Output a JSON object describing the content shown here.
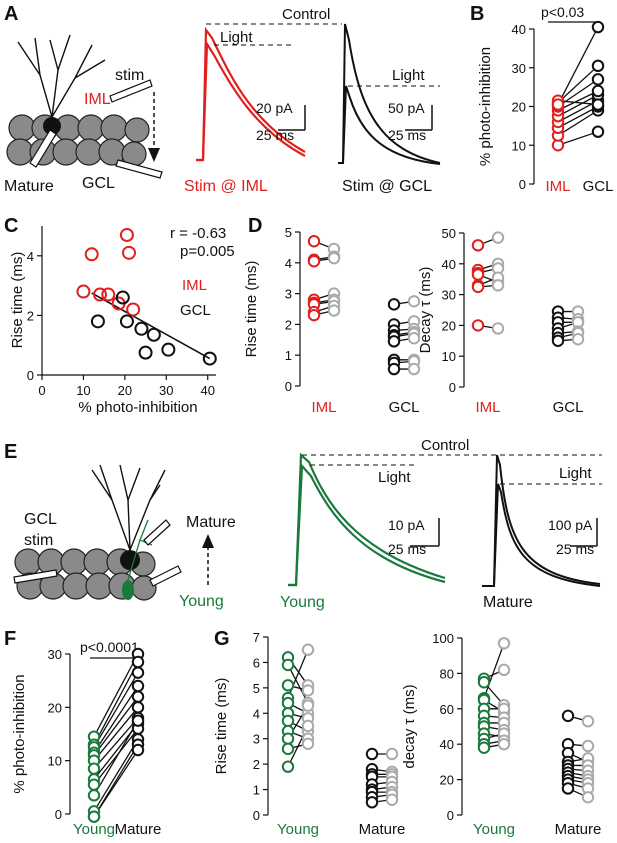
{
  "panels": {
    "A": {
      "letter": "A",
      "labels": {
        "stim": "stim",
        "iml": "IML",
        "mature": "Mature",
        "gcl": "GCL"
      },
      "trace1": {
        "control": "Control",
        "light": "Light",
        "caption": "Stim @ IML",
        "scale_y": "20 pA",
        "scale_x": "25 ms"
      },
      "trace2": {
        "light": "Light",
        "caption": "Stim @ GCL",
        "scale_y": "50 pA",
        "scale_x": "25 ms"
      }
    },
    "B": {
      "letter": "B",
      "sig": "p<0.03"
    },
    "C": {
      "letter": "C",
      "r_text": "r = -0.63",
      "p_text": "p=0.005",
      "legend_iml": "IML",
      "legend_gcl": "GCL"
    },
    "D": {
      "letter": "D"
    },
    "E": {
      "letter": "E",
      "labels": {
        "gcl": "GCL",
        "stim": "stim",
        "mature": "Mature",
        "young": "Young"
      },
      "trace1": {
        "control": "Control",
        "light": "Light",
        "caption": "Young",
        "scale_y": "10 pA",
        "scale_x": "25 ms"
      },
      "trace2": {
        "light": "Light",
        "caption": "Mature",
        "scale_y": "100 pA",
        "scale_x": "25 ms"
      }
    },
    "F": {
      "letter": "F",
      "sig": "p<0.0001"
    },
    "G": {
      "letter": "G"
    }
  },
  "colors": {
    "iml": "#e0201e",
    "gcl": "#111111",
    "young": "#1a7a3c",
    "mature": "#111111",
    "light_gray": "#aaaaaa"
  },
  "chart_data": [
    {
      "id": "B",
      "type": "scatter",
      "subtype": "paired",
      "ylabel": "% photo-inhibition",
      "ylim": [
        0,
        40
      ],
      "yticks": [
        0,
        10,
        20,
        30,
        40
      ],
      "categories": [
        "IML",
        "GCL"
      ],
      "pairs": [
        [
          10,
          13.5
        ],
        [
          12.5,
          19
        ],
        [
          14.5,
          20
        ],
        [
          16,
          21.5
        ],
        [
          17.5,
          23
        ],
        [
          19,
          24
        ],
        [
          20,
          27
        ],
        [
          21,
          30.5
        ],
        [
          21.5,
          20.5
        ],
        [
          20.5,
          40.5
        ]
      ],
      "annotation": "p<0.03"
    },
    {
      "id": "C",
      "type": "scatter",
      "xlabel": "% photo-inhibition",
      "ylabel": "Rise time (ms)",
      "xlim": [
        0,
        42
      ],
      "ylim": [
        0,
        5
      ],
      "xticks": [
        0,
        10,
        20,
        30,
        40
      ],
      "yticks": [
        0,
        2,
        4
      ],
      "series": [
        {
          "name": "IML",
          "color": "#e0201e",
          "points": [
            [
              12,
              4.05
            ],
            [
              20.5,
              4.7
            ],
            [
              21,
              4.1
            ],
            [
              10,
              2.8
            ],
            [
              14,
              2.7
            ],
            [
              16,
              2.7
            ],
            [
              18.5,
              2.4
            ],
            [
              22,
              2.2
            ]
          ]
        },
        {
          "name": "GCL",
          "color": "#111111",
          "points": [
            [
              19.5,
              2.6
            ],
            [
              20.5,
              1.8
            ],
            [
              24,
              1.55
            ],
            [
              27,
              1.35
            ],
            [
              13.5,
              1.8
            ],
            [
              25,
              0.75
            ],
            [
              30.5,
              0.85
            ],
            [
              40.5,
              0.55
            ]
          ]
        }
      ],
      "fit": {
        "from": [
          12,
          2.75
        ],
        "to": [
          40.5,
          0.55
        ]
      },
      "annotations": [
        "r = -0.63",
        "p=0.005"
      ]
    },
    {
      "id": "D-rise",
      "type": "scatter",
      "subtype": "paired",
      "ylabel": "Rise time (ms)",
      "ylim": [
        0,
        5
      ],
      "yticks": [
        0,
        1,
        2,
        3,
        4,
        5
      ],
      "categories": [
        "IML",
        "GCL"
      ],
      "groups": [
        {
          "name": "IML",
          "color": "#e0201e",
          "pairs": [
            [
              4.7,
              4.45
            ],
            [
              4.1,
              4.2
            ],
            [
              4.05,
              4.15
            ],
            [
              2.8,
              3.0
            ],
            [
              2.7,
              2.8
            ],
            [
              2.65,
              2.75
            ],
            [
              2.4,
              2.6
            ],
            [
              2.3,
              2.45
            ]
          ]
        },
        {
          "name": "GCL",
          "color": "#111111",
          "pairs": [
            [
              2.65,
              2.75
            ],
            [
              2.0,
              2.1
            ],
            [
              1.8,
              1.85
            ],
            [
              1.65,
              1.75
            ],
            [
              1.6,
              1.7
            ],
            [
              1.45,
              1.55
            ],
            [
              0.85,
              0.85
            ],
            [
              0.75,
              0.8
            ],
            [
              0.55,
              0.55
            ]
          ]
        }
      ]
    },
    {
      "id": "D-decay",
      "type": "scatter",
      "subtype": "paired",
      "ylabel": "Decay τ (ms)",
      "ylim": [
        0,
        50
      ],
      "yticks": [
        0,
        10,
        20,
        30,
        40,
        50
      ],
      "categories": [
        "IML",
        "GCL"
      ],
      "groups": [
        {
          "name": "IML",
          "color": "#e0201e",
          "pairs": [
            [
              46,
              48.5
            ],
            [
              38,
              40
            ],
            [
              37,
              38.5
            ],
            [
              36.5,
              34
            ],
            [
              33,
              35.5
            ],
            [
              32.5,
              33
            ],
            [
              20,
              19
            ]
          ]
        },
        {
          "name": "GCL",
          "color": "#111111",
          "pairs": [
            [
              24.5,
              24.5
            ],
            [
              22.5,
              22
            ],
            [
              21,
              21
            ],
            [
              19,
              21
            ],
            [
              17.5,
              18
            ],
            [
              16,
              17.5
            ],
            [
              15,
              15.5
            ]
          ]
        }
      ]
    },
    {
      "id": "F",
      "type": "scatter",
      "subtype": "paired",
      "ylabel": "% photo-inhibition",
      "ylim": [
        0,
        30
      ],
      "yticks": [
        0,
        10,
        20,
        30
      ],
      "categories": [
        "Young",
        "Mature"
      ],
      "pairs": [
        [
          14.5,
          30
        ],
        [
          13,
          28.5
        ],
        [
          12.5,
          26.5
        ],
        [
          11.5,
          24
        ],
        [
          11,
          22
        ],
        [
          10,
          20
        ],
        [
          8.5,
          18
        ],
        [
          6.5,
          17
        ],
        [
          5.5,
          16
        ],
        [
          3.5,
          17.5
        ],
        [
          0.5,
          14
        ],
        [
          -0.5,
          13
        ],
        [
          -0.5,
          12
        ]
      ],
      "annotation": "p<0.0001"
    },
    {
      "id": "G-rise",
      "type": "scatter",
      "subtype": "paired",
      "ylabel": "Rise time (ms)",
      "ylim": [
        0,
        7
      ],
      "yticks": [
        0,
        1,
        2,
        3,
        4,
        5,
        6,
        7
      ],
      "categories": [
        "Young",
        "Mature"
      ],
      "groups": [
        {
          "name": "Young",
          "color": "#1a7a3c",
          "pairs": [
            [
              6.2,
              5.1
            ],
            [
              5.9,
              4.4
            ],
            [
              5.1,
              4.9
            ],
            [
              4.6,
              6.5
            ],
            [
              4.4,
              4.0
            ],
            [
              4.0,
              3.8
            ],
            [
              3.7,
              3.3
            ],
            [
              3.3,
              3.0
            ],
            [
              3.0,
              4.3
            ],
            [
              2.6,
              2.8
            ],
            [
              1.9,
              3.5
            ]
          ]
        },
        {
          "name": "Mature",
          "color": "#111111",
          "pairs": [
            [
              2.4,
              2.4
            ],
            [
              1.8,
              1.7
            ],
            [
              1.6,
              1.6
            ],
            [
              1.5,
              1.5
            ],
            [
              1.2,
              1.3
            ],
            [
              1.0,
              1.1
            ],
            [
              0.9,
              0.9
            ],
            [
              0.7,
              0.8
            ],
            [
              0.5,
              0.6
            ]
          ]
        }
      ]
    },
    {
      "id": "G-decay",
      "type": "scatter",
      "subtype": "paired",
      "ylabel": "decay τ (ms)",
      "ylim": [
        0,
        100
      ],
      "yticks": [
        0,
        20,
        40,
        60,
        80,
        100
      ],
      "categories": [
        "Young",
        "Mature"
      ],
      "groups": [
        {
          "name": "Young",
          "color": "#1a7a3c",
          "pairs": [
            [
              77,
              82
            ],
            [
              75,
              62
            ],
            [
              66,
              97
            ],
            [
              65,
              58
            ],
            [
              60,
              60
            ],
            [
              56,
              55
            ],
            [
              52,
              52
            ],
            [
              50,
              48
            ],
            [
              46,
              44
            ],
            [
              43,
              46
            ],
            [
              40,
              42
            ],
            [
              38,
              40
            ]
          ]
        },
        {
          "name": "Mature",
          "color": "#111111",
          "pairs": [
            [
              56,
              53
            ],
            [
              40,
              39
            ],
            [
              35,
              30
            ],
            [
              30,
              32
            ],
            [
              28,
              28
            ],
            [
              26,
              25
            ],
            [
              24,
              22
            ],
            [
              22,
              20
            ],
            [
              20,
              18
            ],
            [
              18,
              15
            ],
            [
              15,
              10
            ]
          ]
        }
      ]
    }
  ]
}
